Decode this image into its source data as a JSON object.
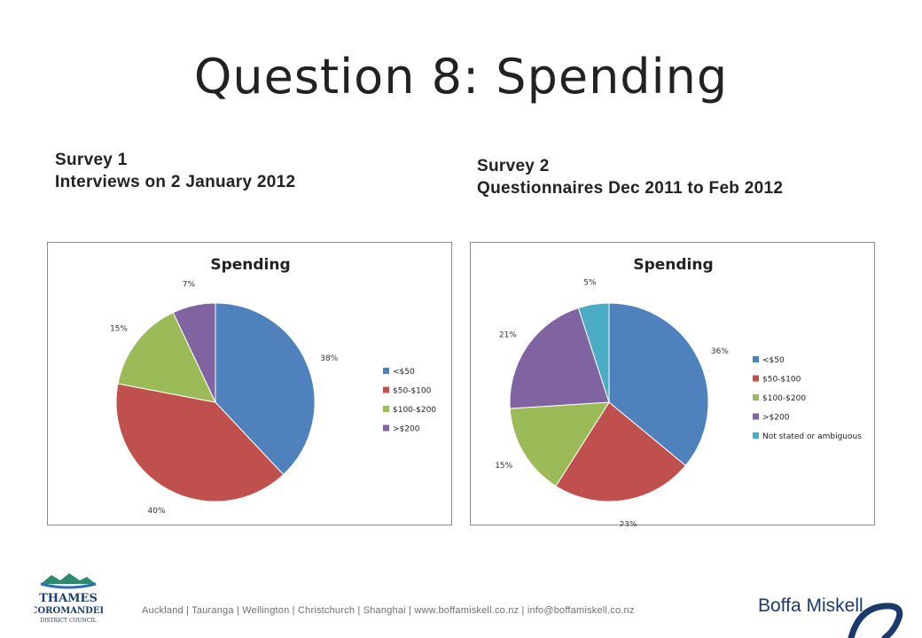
{
  "slide": {
    "title": "Question 8: Spending",
    "survey1": {
      "line1": "Survey 1",
      "line2": "Interviews on 2 January 2012"
    },
    "survey2": {
      "line1": "Survey 2",
      "line2": "Questionnaires Dec 2011 to Feb 2012"
    },
    "footer": "Auckland  |  Tauranga  |  Wellington  |  Christchurch  |  Shanghai   |  www.boffamiskell.co.nz   |  info@boffamiskell.co.nz",
    "brand": "Boffa Miskell",
    "council_logo": {
      "line1": "THAMES",
      "line2": "COROMANDEL",
      "line3": "DISTRICT COUNCIL"
    }
  },
  "colors": {
    "blue": "#4F81BD",
    "red": "#C0504D",
    "green": "#9BBB59",
    "purple": "#8064A2",
    "teal": "#4BACC6",
    "brand": "#1a3a6e"
  },
  "chart_data": [
    {
      "type": "pie",
      "title": "Spending",
      "categories": [
        "<$50",
        "$50-$100",
        "$100-$200",
        ">$200"
      ],
      "values": [
        38,
        40,
        15,
        7
      ],
      "labels": [
        "38%",
        "40%",
        "15%",
        "7%"
      ],
      "colors": [
        "#4F81BD",
        "#C0504D",
        "#9BBB59",
        "#8064A2"
      ],
      "legend": "right"
    },
    {
      "type": "pie",
      "title": "Spending",
      "categories": [
        "<$50",
        "$50-$100",
        "$100-$200",
        ">$200",
        "Not stated or ambiguous"
      ],
      "values": [
        36,
        23,
        15,
        21,
        5
      ],
      "labels": [
        "36%",
        "23%",
        "15%",
        "21%",
        "5%"
      ],
      "colors": [
        "#4F81BD",
        "#C0504D",
        "#9BBB59",
        "#8064A2",
        "#4BACC6"
      ],
      "legend": "right"
    }
  ]
}
